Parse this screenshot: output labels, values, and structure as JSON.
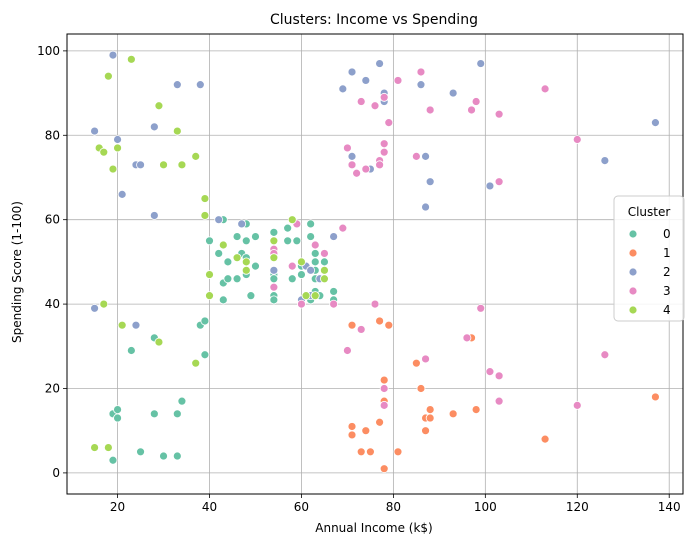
{
  "chart_data": {
    "type": "scatter",
    "title": "Clusters: Income vs Spending",
    "xlabel": "Annual Income (k$)",
    "ylabel": "Spending Score (1-100)",
    "xlim": [
      9,
      143
    ],
    "ylim": [
      -5,
      104
    ],
    "xticks": [
      20,
      40,
      60,
      80,
      100,
      120,
      140
    ],
    "yticks": [
      0,
      20,
      40,
      60,
      80,
      100
    ],
    "grid": true,
    "legend": {
      "title": "Cluster",
      "placement": "center-right"
    },
    "series": [
      {
        "name": "0",
        "color": "#66c2a5",
        "points": [
          [
            19,
            3
          ],
          [
            19,
            14
          ],
          [
            20,
            15
          ],
          [
            20,
            13
          ],
          [
            23,
            29
          ],
          [
            25,
            5
          ],
          [
            28,
            14
          ],
          [
            28,
            32
          ],
          [
            30,
            4
          ],
          [
            33,
            4
          ],
          [
            33,
            14
          ],
          [
            34,
            17
          ],
          [
            38,
            35
          ],
          [
            39,
            36
          ],
          [
            39,
            28
          ],
          [
            40,
            55
          ],
          [
            42,
            52
          ],
          [
            43,
            60
          ],
          [
            43,
            45
          ],
          [
            43,
            41
          ],
          [
            44,
            46
          ],
          [
            44,
            50
          ],
          [
            46,
            51
          ],
          [
            46,
            46
          ],
          [
            46,
            56
          ],
          [
            47,
            52
          ],
          [
            48,
            59
          ],
          [
            48,
            55
          ],
          [
            48,
            51
          ],
          [
            48,
            47
          ],
          [
            49,
            42
          ],
          [
            50,
            49
          ],
          [
            50,
            56
          ],
          [
            54,
            47
          ],
          [
            54,
            46
          ],
          [
            54,
            42
          ],
          [
            54,
            41
          ],
          [
            54,
            55
          ],
          [
            54,
            57
          ],
          [
            57,
            58
          ],
          [
            57,
            55
          ],
          [
            58,
            46
          ],
          [
            59,
            55
          ],
          [
            60,
            49
          ],
          [
            60,
            47
          ],
          [
            61,
            42
          ],
          [
            62,
            41
          ],
          [
            62,
            56
          ],
          [
            62,
            59
          ],
          [
            63,
            52
          ],
          [
            63,
            50
          ],
          [
            63,
            48
          ],
          [
            63,
            46
          ],
          [
            63,
            43
          ],
          [
            64,
            42
          ],
          [
            65,
            48
          ],
          [
            65,
            50
          ],
          [
            67,
            43
          ],
          [
            67,
            41
          ],
          [
            75,
            5
          ]
        ]
      },
      {
        "name": "1",
        "color": "#fc8d62",
        "points": [
          [
            71,
            35
          ],
          [
            71,
            11
          ],
          [
            71,
            9
          ],
          [
            73,
            5
          ],
          [
            73,
            5
          ],
          [
            74,
            10
          ],
          [
            75,
            5
          ],
          [
            77,
            12
          ],
          [
            77,
            36
          ],
          [
            78,
            1
          ],
          [
            78,
            22
          ],
          [
            78,
            17
          ],
          [
            78,
            16
          ],
          [
            79,
            35
          ],
          [
            81,
            5
          ],
          [
            85,
            26
          ],
          [
            86,
            20
          ],
          [
            87,
            13
          ],
          [
            87,
            10
          ],
          [
            88,
            13
          ],
          [
            88,
            15
          ],
          [
            93,
            14
          ],
          [
            97,
            32
          ],
          [
            98,
            15
          ],
          [
            113,
            8
          ],
          [
            137,
            18
          ]
        ]
      },
      {
        "name": "2",
        "color": "#8da0cb",
        "points": [
          [
            15,
            39
          ],
          [
            15,
            81
          ],
          [
            19,
            99
          ],
          [
            20,
            79
          ],
          [
            21,
            66
          ],
          [
            24,
            35
          ],
          [
            24,
            73
          ],
          [
            25,
            73
          ],
          [
            28,
            82
          ],
          [
            28,
            61
          ],
          [
            33,
            92
          ],
          [
            38,
            92
          ],
          [
            42,
            60
          ],
          [
            47,
            59
          ],
          [
            54,
            48
          ],
          [
            60,
            41
          ],
          [
            61,
            49
          ],
          [
            62,
            48
          ],
          [
            62,
            42
          ],
          [
            64,
            46
          ],
          [
            67,
            56
          ],
          [
            69,
            91
          ],
          [
            71,
            95
          ],
          [
            71,
            75
          ],
          [
            74,
            93
          ],
          [
            75,
            72
          ],
          [
            77,
            97
          ],
          [
            78,
            88
          ],
          [
            78,
            89
          ],
          [
            78,
            90
          ],
          [
            86,
            92
          ],
          [
            87,
            75
          ],
          [
            87,
            63
          ],
          [
            88,
            69
          ],
          [
            93,
            90
          ],
          [
            99,
            97
          ],
          [
            101,
            68
          ],
          [
            126,
            74
          ],
          [
            137,
            83
          ]
        ]
      },
      {
        "name": "3",
        "color": "#e78ac3",
        "points": [
          [
            54,
            53
          ],
          [
            54,
            52
          ],
          [
            54,
            51
          ],
          [
            54,
            44
          ],
          [
            58,
            49
          ],
          [
            59,
            59
          ],
          [
            60,
            40
          ],
          [
            63,
            42
          ],
          [
            63,
            54
          ],
          [
            65,
            52
          ],
          [
            67,
            40
          ],
          [
            69,
            58
          ],
          [
            70,
            77
          ],
          [
            70,
            29
          ],
          [
            71,
            73
          ],
          [
            72,
            71
          ],
          [
            73,
            88
          ],
          [
            73,
            34
          ],
          [
            74,
            72
          ],
          [
            76,
            87
          ],
          [
            76,
            40
          ],
          [
            77,
            74
          ],
          [
            77,
            73
          ],
          [
            78,
            78
          ],
          [
            78,
            76
          ],
          [
            78,
            89
          ],
          [
            78,
            20
          ],
          [
            78,
            16
          ],
          [
            79,
            83
          ],
          [
            81,
            93
          ],
          [
            85,
            75
          ],
          [
            86,
            95
          ],
          [
            87,
            27
          ],
          [
            88,
            86
          ],
          [
            96,
            32
          ],
          [
            97,
            86
          ],
          [
            98,
            88
          ],
          [
            99,
            39
          ],
          [
            101,
            24
          ],
          [
            103,
            85
          ],
          [
            103,
            69
          ],
          [
            103,
            23
          ],
          [
            103,
            17
          ],
          [
            113,
            91
          ],
          [
            120,
            79
          ],
          [
            120,
            16
          ],
          [
            126,
            28
          ]
        ]
      },
      {
        "name": "4",
        "color": "#a6d854",
        "points": [
          [
            15,
            6
          ],
          [
            16,
            77
          ],
          [
            17,
            76
          ],
          [
            17,
            40
          ],
          [
            18,
            94
          ],
          [
            18,
            6
          ],
          [
            19,
            72
          ],
          [
            20,
            77
          ],
          [
            21,
            35
          ],
          [
            23,
            98
          ],
          [
            29,
            31
          ],
          [
            29,
            87
          ],
          [
            30,
            73
          ],
          [
            33,
            81
          ],
          [
            34,
            73
          ],
          [
            37,
            75
          ],
          [
            37,
            26
          ],
          [
            39,
            65
          ],
          [
            39,
            61
          ],
          [
            40,
            47
          ],
          [
            40,
            42
          ],
          [
            43,
            54
          ],
          [
            46,
            51
          ],
          [
            48,
            50
          ],
          [
            48,
            48
          ],
          [
            54,
            51
          ],
          [
            54,
            55
          ],
          [
            58,
            60
          ],
          [
            60,
            50
          ],
          [
            61,
            42
          ],
          [
            63,
            42
          ],
          [
            65,
            46
          ],
          [
            65,
            48
          ]
        ]
      }
    ]
  }
}
